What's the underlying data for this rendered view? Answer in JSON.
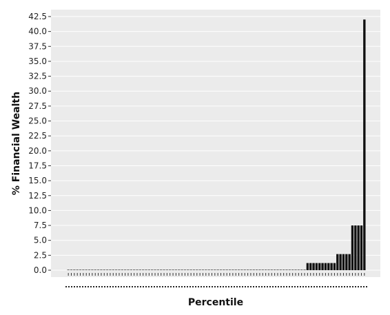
{
  "chart_data": {
    "type": "bar",
    "title": "",
    "xlabel": "Percentile",
    "ylabel": "% Financial Wealth",
    "ylim": [
      0,
      43
    ],
    "yticks": [
      "0.0",
      "2.5",
      "5.0",
      "7.5",
      "10.0",
      "12.5",
      "15.0",
      "17.5",
      "20.0",
      "22.5",
      "25.0",
      "27.5",
      "30.0",
      "32.5",
      "35.0",
      "37.5",
      "40.0",
      "42.5"
    ],
    "grid": true,
    "legend": "none",
    "bar_count": 100,
    "values": [
      0,
      0,
      0,
      0,
      0,
      0,
      0,
      0,
      0,
      0,
      0,
      0,
      0,
      0,
      0,
      0,
      0,
      0,
      0,
      0,
      0,
      0,
      0,
      0,
      0,
      0,
      0,
      0,
      0,
      0,
      0,
      0,
      0,
      0,
      0,
      0,
      0,
      0,
      0,
      0,
      0,
      0,
      0,
      0,
      0,
      0,
      0,
      0,
      0,
      0,
      0,
      0,
      0,
      0,
      0,
      0,
      0,
      0,
      0,
      0,
      0,
      0,
      0,
      0,
      0,
      0,
      0,
      0,
      0,
      0,
      0,
      0,
      0,
      0,
      0,
      0,
      0,
      0,
      0,
      0,
      1.2,
      1.2,
      1.2,
      1.2,
      1.2,
      1.2,
      1.2,
      1.2,
      1.2,
      1.2,
      2.7,
      2.7,
      2.7,
      2.7,
      2.7,
      7.5,
      7.5,
      7.5,
      7.5,
      42
    ]
  },
  "colors": {
    "panel_background": "#ebebeb",
    "gridline": "#ffffff",
    "bar_fill": "#111111"
  }
}
